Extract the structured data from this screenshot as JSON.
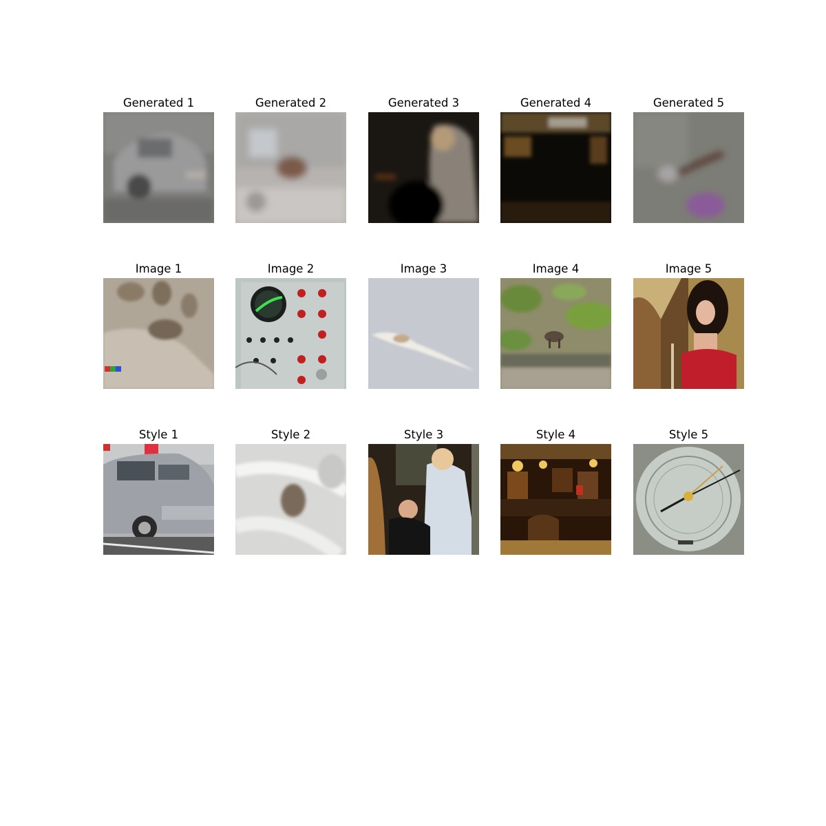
{
  "rows": [
    {
      "cells": [
        {
          "title": "Generated 1",
          "image": "blurry-gray-car-image"
        },
        {
          "title": "Generated 2",
          "image": "blurry-brown-shape-on-white-image"
        },
        {
          "title": "Generated 3",
          "image": "dark-blurry-person-image"
        },
        {
          "title": "Generated 4",
          "image": "dark-blurry-interior-image"
        },
        {
          "title": "Generated 5",
          "image": "blurry-gray-purple-texture-image"
        }
      ]
    },
    {
      "cells": [
        {
          "title": "Image 1",
          "image": "sand-with-footprints-image"
        },
        {
          "title": "Image 2",
          "image": "electronic-control-panel-image"
        },
        {
          "title": "Image 3",
          "image": "white-bird-in-flight-image"
        },
        {
          "title": "Image 4",
          "image": "animal-on-grassy-hillside-image"
        },
        {
          "title": "Image 5",
          "image": "woman-in-red-dress-image"
        }
      ]
    },
    {
      "cells": [
        {
          "title": "Style 1",
          "image": "silver-minivan-image"
        },
        {
          "title": "Style 2",
          "image": "white-fur-image"
        },
        {
          "title": "Style 3",
          "image": "harp-player-and-woman-image"
        },
        {
          "title": "Style 4",
          "image": "barbershop-interior-image"
        },
        {
          "title": "Style 5",
          "image": "barometer-dial-image"
        }
      ]
    }
  ]
}
